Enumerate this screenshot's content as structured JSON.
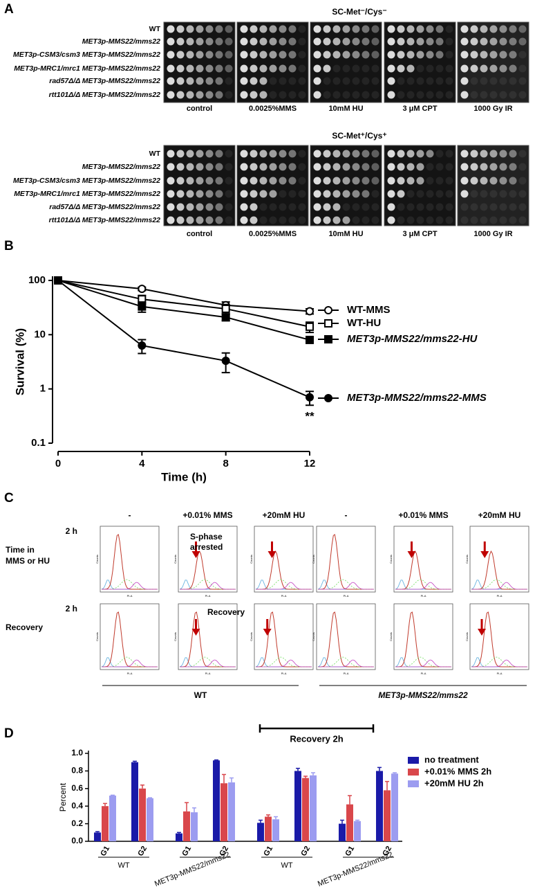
{
  "panel_labels": [
    "A",
    "B",
    "C",
    "D"
  ],
  "spot_assay": {
    "blocks": [
      {
        "title": "SC-Met⁻/Cys⁻",
        "strains": [
          "WT",
          "MET3p-MMS22/mms22",
          "MET3p-CSM3/csm3 MET3p-MMS22/mms22",
          "MET3p-MRC1/mrc1 MET3p-MMS22/mms22",
          "rad57Δ/Δ MET3p-MMS22/mms22",
          "rtt101Δ/Δ MET3p-MMS22/mms22"
        ],
        "conditions": [
          "control",
          "0.0025%MMS",
          "10mM HU",
          "3 μM CPT",
          "1000 Gy IR"
        ]
      },
      {
        "title": "SC-Met⁺/Cys⁺",
        "strains": [
          "WT",
          "MET3p-MMS22/mms22",
          "MET3p-CSM3/csm3 MET3p-MMS22/mms22",
          "MET3p-MRC1/mrc1 MET3p-MMS22/mms22",
          "rad57Δ/Δ MET3p-MMS22/mms22",
          "rtt101Δ/Δ MET3p-MMS22/mms22"
        ],
        "conditions": [
          "control",
          "0.0025%MMS",
          "10mM HU",
          "3 μM CPT",
          "1000 Gy IR"
        ]
      }
    ]
  },
  "flow_cytometry": {
    "columns": [
      "-",
      "+0.01% MMS",
      "+20mM HU",
      "-",
      "+0.01% MMS",
      "+20mM HU"
    ],
    "rows": [
      {
        "time": "2 h",
        "label": [
          "Time in",
          "MMS or HU"
        ]
      },
      {
        "time": "2 h",
        "label": [
          "Recovery"
        ]
      }
    ],
    "annotations": [
      [
        "S-phase",
        "arrested"
      ],
      [
        "Recovery"
      ]
    ],
    "axis_labels": {
      "x": "PI-A",
      "y": "Counts"
    },
    "groups": [
      "WT",
      "MET3p-MMS22/mms22"
    ]
  },
  "chart_data": [
    {
      "type": "line",
      "xlabel": "Time (h)",
      "ylabel": "Survival (%)",
      "x": [
        0,
        4,
        8,
        12
      ],
      "xlim": [
        0,
        12
      ],
      "xticks": [
        0,
        4,
        8,
        12
      ],
      "ylim": [
        0.1,
        100
      ],
      "yticks": [
        0.1,
        1,
        10,
        100
      ],
      "log_y": true,
      "annotation": "**",
      "series": [
        {
          "name": "WT-MMS",
          "color": "#000000",
          "marker": "open-circle",
          "values": [
            100,
            70,
            35,
            27
          ],
          "errors": [
            0,
            5,
            5,
            3
          ]
        },
        {
          "name": "WT-HU",
          "color": "#000000",
          "marker": "open-square",
          "values": [
            100,
            45,
            30,
            14
          ],
          "errors": [
            0,
            8,
            6,
            3
          ]
        },
        {
          "name": "MET3p-MMS22/mms22-HU",
          "color": "#000000",
          "marker": "filled-square",
          "values": [
            100,
            33,
            21,
            8
          ],
          "errors": [
            0,
            7,
            3,
            1
          ]
        },
        {
          "name": "MET3p-MMS22/mms22-MMS",
          "color": "#000000",
          "marker": "filled-circle",
          "values": [
            100,
            6.3,
            3.3,
            0.7
          ],
          "errors": [
            0,
            1.8,
            1.3,
            0.2
          ]
        }
      ]
    },
    {
      "type": "grouped_bar",
      "ylabel": "Percent",
      "categories": [
        "G1",
        "G2",
        "G1",
        "G2",
        "G1",
        "G2",
        "G1",
        "G2"
      ],
      "groups": [
        "WT",
        "MET3p-MMS22/mms22",
        "WT",
        "MET3p-MMS22/mms22"
      ],
      "annotation": "Recovery 2h",
      "ylim": [
        0,
        1
      ],
      "yticks": [
        {
          "value": 0,
          "label": "0.0"
        },
        0.2,
        0.4,
        0.6,
        0.8,
        {
          "value": 1,
          "label": "1.0"
        }
      ],
      "series": [
        {
          "name": "no treatment",
          "color": "#1a1aa8",
          "values": [
            0.1,
            0.9,
            0.09,
            0.92,
            0.21,
            0.8,
            0.2,
            0.8
          ],
          "errors": [
            0.01,
            0.01,
            0.01,
            0.005,
            0.03,
            0.03,
            0.04,
            0.04
          ]
        },
        {
          "name": "+0.01% MMS 2h",
          "color": "#d9474b",
          "values": [
            0.4,
            0.6,
            0.34,
            0.66,
            0.28,
            0.72,
            0.42,
            0.58
          ],
          "errors": [
            0.03,
            0.04,
            0.1,
            0.1,
            0.02,
            0.02,
            0.1,
            0.1
          ]
        },
        {
          "name": "+20mM HU 2h",
          "color": "#9c9cf0",
          "values": [
            0.52,
            0.49,
            0.33,
            0.67,
            0.25,
            0.75,
            0.23,
            0.77
          ],
          "errors": [
            0.005,
            0.005,
            0.05,
            0.05,
            0.03,
            0.03,
            0.01,
            0.01
          ]
        }
      ]
    }
  ]
}
